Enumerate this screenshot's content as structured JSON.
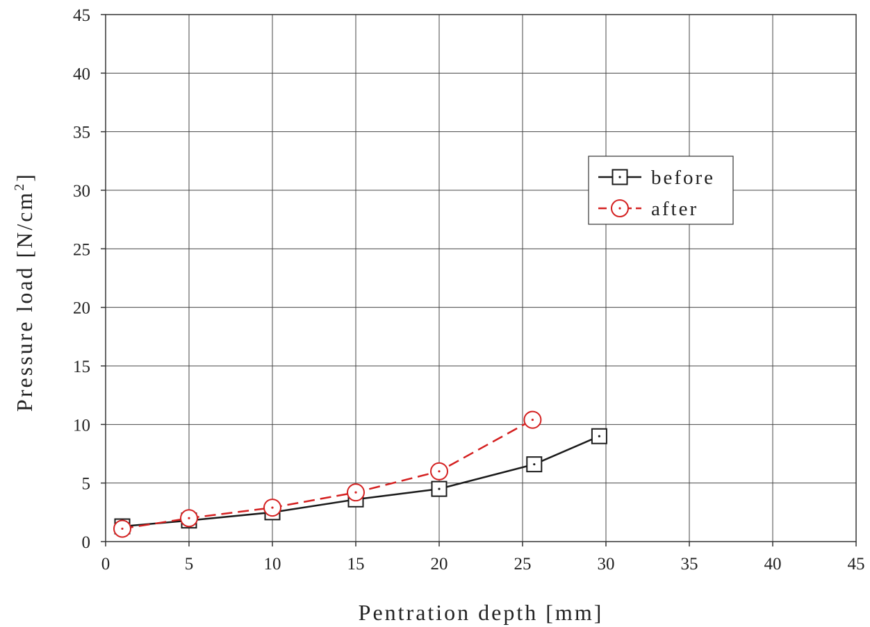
{
  "chart_data": {
    "type": "line",
    "xlabel": "Pentration depth [mm]",
    "ylabel": "Pressure load [N/cm",
    "ylabel_sup": "2",
    "ylabel_end": "]",
    "xlim": [
      0,
      45
    ],
    "ylim": [
      0,
      45
    ],
    "xticks": [
      "0",
      "5",
      "10",
      "15",
      "20",
      "25",
      "30",
      "35",
      "40",
      "45"
    ],
    "yticks": [
      "0",
      "5",
      "10",
      "15",
      "20",
      "25",
      "30",
      "35",
      "40",
      "45"
    ],
    "grid": true,
    "legend_position": "upper-right",
    "series": [
      {
        "name": "before",
        "color": "#1a1a1a",
        "line_style": "solid",
        "marker": "square",
        "x": [
          1,
          5,
          10,
          15,
          20,
          25.7,
          29.6
        ],
        "y": [
          1.3,
          1.8,
          2.5,
          3.6,
          4.5,
          6.6,
          9.0
        ]
      },
      {
        "name": "after",
        "color": "#d42020",
        "line_style": "dashed",
        "marker": "circle",
        "x": [
          1,
          5,
          10,
          15,
          20,
          25.6
        ],
        "y": [
          1.1,
          2.0,
          2.9,
          4.2,
          6.0,
          10.4
        ]
      }
    ]
  }
}
